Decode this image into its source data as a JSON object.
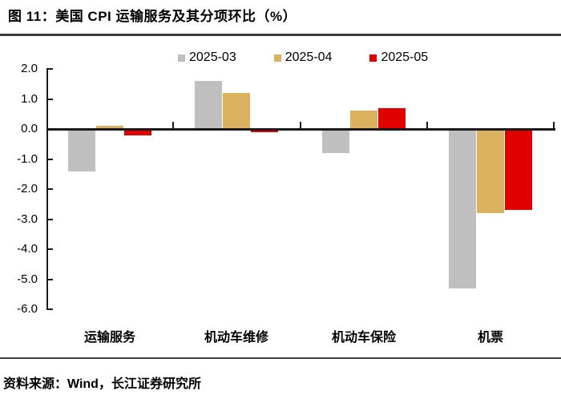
{
  "page": {
    "title": "图 11：美国 CPI 运输服务及其分项环比（%）",
    "source": "资料来源：Wind，长江证券研究所"
  },
  "chart_data": {
    "type": "bar",
    "title": "美国 CPI 运输服务及其分项环比（%）",
    "categories": [
      "运输服务",
      "机动车维修",
      "机动车保险",
      "机票"
    ],
    "series": [
      {
        "name": "2025-03",
        "color": "#BFBFBF",
        "values": [
          -1.4,
          1.6,
          -0.8,
          -5.3
        ]
      },
      {
        "name": "2025-04",
        "color": "#DBB05E",
        "values": [
          0.1,
          1.2,
          0.6,
          -2.8
        ]
      },
      {
        "name": "2025-05",
        "color": "#E00000",
        "values": [
          -0.2,
          -0.1,
          0.7,
          -2.7
        ]
      }
    ],
    "xlabel": "",
    "ylabel": "",
    "unit": "%",
    "ylim": [
      -6.0,
      2.0
    ],
    "ytick_step": 1.0,
    "ytick_labels": [
      "2.0",
      "1.0",
      "0.0",
      "-1.0",
      "-2.0",
      "-3.0",
      "-4.0",
      "-5.0",
      "-6.0"
    ],
    "legend_position": "top",
    "grid": false
  },
  "colors": {
    "axis": "#1a1a1a",
    "rule": "#3d3d3d",
    "gray_series": "#BFBFBF",
    "tan_series": "#DBB05E",
    "red_series": "#E00000"
  }
}
